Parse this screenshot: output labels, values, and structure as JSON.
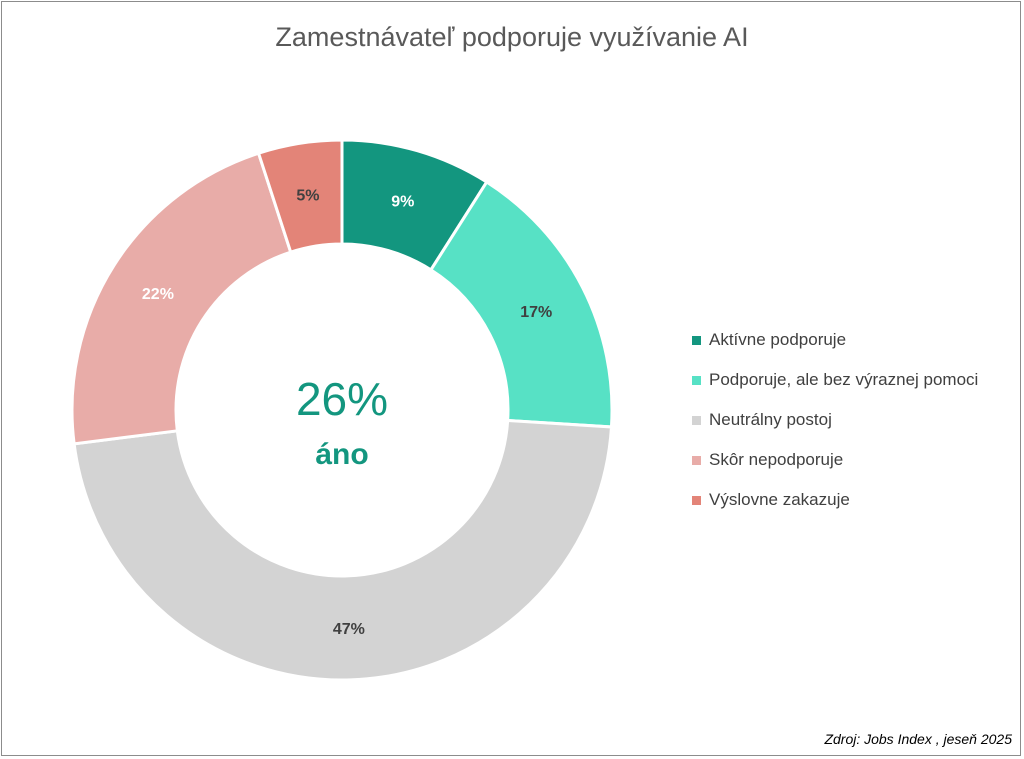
{
  "chart_data": {
    "type": "pie",
    "title": "Zamestnávateľ podporuje využívanie AI",
    "center_value": "26%",
    "center_label": "áno",
    "slices": [
      {
        "name": "Aktívne podporuje",
        "value": 9,
        "label": "9%",
        "color": "#13967f"
      },
      {
        "name": "Podporuje, ale bez výraznej pomoci",
        "value": 17,
        "label": "17%",
        "color": "#57e1c5"
      },
      {
        "name": "Neutrálny postoj",
        "value": 47,
        "label": "47%",
        "color": "#d3d3d3"
      },
      {
        "name": "Skôr nepodporuje",
        "value": 22,
        "label": "22%",
        "color": "#e8aca8"
      },
      {
        "name": "Výslovne zakazuje",
        "value": 5,
        "label": "5%",
        "color": "#e38478"
      }
    ],
    "legend_position": "right"
  },
  "colors": {
    "accent": "#13967f",
    "label_dark": "#404040",
    "label_light": "#ffffff"
  },
  "source": "Zdroj: Jobs Index , jeseň 2025"
}
